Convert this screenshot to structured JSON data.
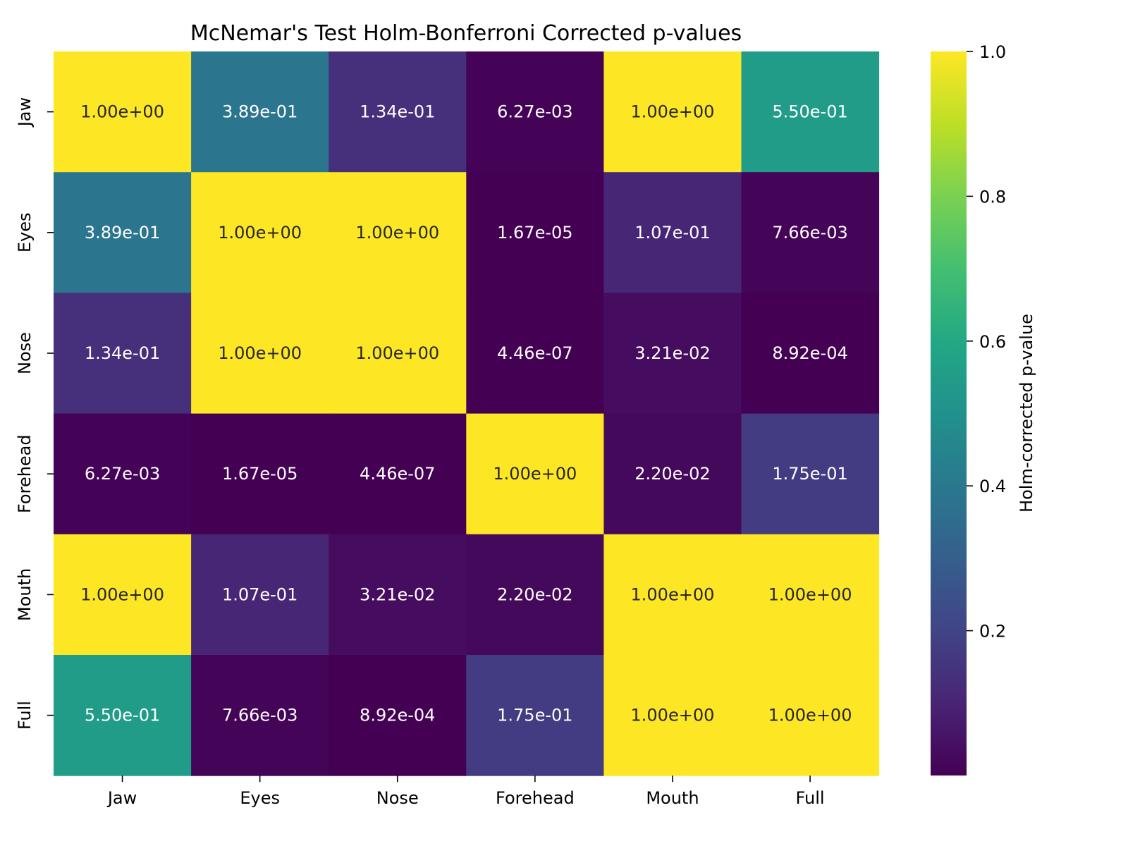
{
  "chart_data": {
    "type": "heatmap",
    "title": "McNemar's Test Holm-Bonferroni Corrected p-values",
    "xlabel": "",
    "ylabel": "",
    "x_categories": [
      "Jaw",
      "Eyes",
      "Nose",
      "Forehead",
      "Mouth",
      "Full"
    ],
    "y_categories": [
      "Jaw",
      "Eyes",
      "Nose",
      "Forehead",
      "Mouth",
      "Full"
    ],
    "values": [
      [
        1.0,
        0.389,
        0.134,
        0.00627,
        1.0,
        0.55
      ],
      [
        0.389,
        1.0,
        1.0,
        1.67e-05,
        0.107,
        0.00766
      ],
      [
        0.134,
        1.0,
        1.0,
        4.46e-07,
        0.0321,
        0.000892
      ],
      [
        0.00627,
        1.67e-05,
        4.46e-07,
        1.0,
        0.022,
        0.175
      ],
      [
        1.0,
        0.107,
        0.0321,
        0.022,
        1.0,
        1.0
      ],
      [
        0.55,
        0.00766,
        0.000892,
        0.175,
        1.0,
        1.0
      ]
    ],
    "annotations": [
      [
        "1.00e+00",
        "3.89e-01",
        "1.34e-01",
        "6.27e-03",
        "1.00e+00",
        "5.50e-01"
      ],
      [
        "3.89e-01",
        "1.00e+00",
        "1.00e+00",
        "1.67e-05",
        "1.07e-01",
        "7.66e-03"
      ],
      [
        "1.34e-01",
        "1.00e+00",
        "1.00e+00",
        "4.46e-07",
        "3.21e-02",
        "8.92e-04"
      ],
      [
        "6.27e-03",
        "1.67e-05",
        "4.46e-07",
        "1.00e+00",
        "2.20e-02",
        "1.75e-01"
      ],
      [
        "1.00e+00",
        "1.07e-01",
        "3.21e-02",
        "2.20e-02",
        "1.00e+00",
        "1.00e+00"
      ],
      [
        "5.50e-01",
        "7.66e-03",
        "8.92e-04",
        "1.75e-01",
        "1.00e+00",
        "1.00e+00"
      ]
    ],
    "colormap": "viridis",
    "colorbar": {
      "label": "Holm-corrected p-value",
      "range": [
        4.46e-07,
        1.0
      ],
      "ticks": [
        0.2,
        0.4,
        0.6,
        0.8,
        1.0
      ],
      "tick_labels": [
        "0.2",
        "0.4",
        "0.6",
        "0.8",
        "1.0"
      ]
    },
    "grid": false,
    "legend": "colorbar-right"
  }
}
